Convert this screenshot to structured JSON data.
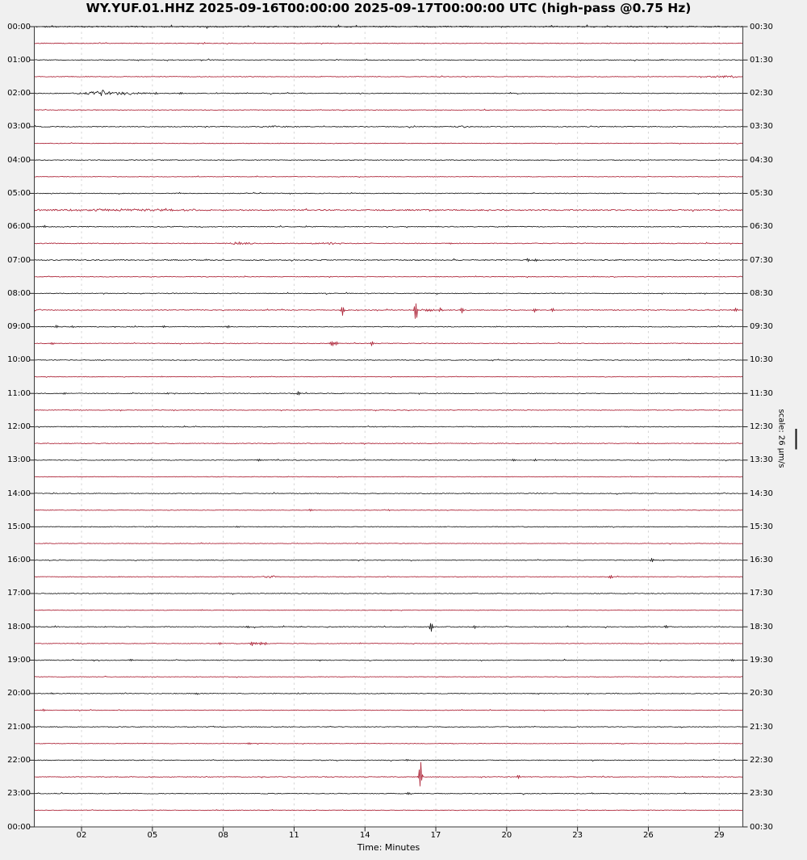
{
  "figure": {
    "title": "WY.YUF.01.HHZ 2025-09-16T00:00:00 2025-09-17T00:00:00 UTC (high-pass @0.75 Hz)",
    "xlabel": "Time: Minutes",
    "scale_label": "scale: 26 µm/s"
  },
  "colors": {
    "figure_bg": "#f0f0f0",
    "axes_bg": "#ffffff",
    "axes_border": "#3a3a3a",
    "grid": "#d6d6d6",
    "tick": "#222222",
    "black_trace": "#1d1d1d",
    "red_trace": "#b02c3f",
    "text": "#000000"
  },
  "chart_data": {
    "type": "line",
    "subtype": "helicorder-dayplot",
    "station": "WY.YUF.01.HHZ",
    "time_window_utc": [
      "2025-09-16T00:00:00",
      "2025-09-17T00:00:00"
    ],
    "filter": "high-pass @0.75 Hz",
    "minutes_per_row": 30,
    "x_axis": {
      "label": "Time: Minutes",
      "range_minutes": [
        0,
        30
      ],
      "tick_minutes": [
        2,
        5,
        8,
        11,
        14,
        17,
        20,
        23,
        26,
        29
      ],
      "tick_labels": [
        "02",
        "05",
        "08",
        "11",
        "14",
        "17",
        "20",
        "23",
        "26",
        "29"
      ],
      "grid": "vertical-dashed"
    },
    "y_axis": {
      "left_labels": [
        "00:00",
        "01:00",
        "02:00",
        "03:00",
        "04:00",
        "05:00",
        "06:00",
        "07:00",
        "08:00",
        "09:00",
        "10:00",
        "11:00",
        "12:00",
        "13:00",
        "14:00",
        "15:00",
        "16:00",
        "17:00",
        "18:00",
        "19:00",
        "20:00",
        "21:00",
        "22:00",
        "23:00",
        "00:00"
      ],
      "right_labels": [
        "00:30",
        "01:30",
        "02:30",
        "03:30",
        "04:30",
        "05:30",
        "06:30",
        "07:30",
        "08:30",
        "09:30",
        "10:30",
        "11:30",
        "12:30",
        "13:30",
        "14:30",
        "15:30",
        "16:30",
        "17:30",
        "18:30",
        "19:30",
        "20:30",
        "21:30",
        "22:30",
        "23:30",
        "00:30"
      ]
    },
    "scale": {
      "label": "scale: 26 µm/s",
      "value_um_per_s": 26
    },
    "rows": [
      {
        "start": "00:00",
        "color": "k",
        "noise": 1.4,
        "events": []
      },
      {
        "start": "00:30",
        "color": "r",
        "noise": 0.7,
        "events": []
      },
      {
        "start": "01:00",
        "color": "k",
        "noise": 0.8,
        "events": [
          {
            "m": 26.6,
            "u": 1.0,
            "d": 1.0
          }
        ]
      },
      {
        "start": "01:30",
        "color": "r",
        "noise": 0.7,
        "events": [
          {
            "m": 29.0,
            "w": 9,
            "t": "f",
            "u": 1.6,
            "d": 1.6
          },
          {
            "m": 29.6,
            "w": 3,
            "t": "f",
            "u": 1.8,
            "d": 1.8
          }
        ]
      },
      {
        "start": "02:00",
        "color": "k",
        "noise": 0.8,
        "events": [
          {
            "m": 3.2,
            "w": 26,
            "t": "f",
            "u": 2.2,
            "d": 2.2
          },
          {
            "m": 2.9,
            "w": 8,
            "t": "f",
            "u": 3.0,
            "d": 3.0
          },
          {
            "m": 5.15,
            "u": 1.5,
            "d": 1.5
          },
          {
            "m": 6.2,
            "u": 1.5,
            "d": 1.5
          }
        ]
      },
      {
        "start": "02:30",
        "color": "r",
        "noise": 0.7,
        "events": []
      },
      {
        "start": "03:00",
        "color": "k",
        "noise": 0.9,
        "events": [
          {
            "m": 10.2,
            "w": 12,
            "t": "f",
            "u": 1.0,
            "d": 1.0
          },
          {
            "m": 18.2,
            "w": 10,
            "t": "f",
            "u": 1.0,
            "d": 1.0
          }
        ]
      },
      {
        "start": "03:30",
        "color": "r",
        "noise": 0.6,
        "events": []
      },
      {
        "start": "04:00",
        "color": "k",
        "noise": 0.8,
        "events": []
      },
      {
        "start": "04:30",
        "color": "r",
        "noise": 0.6,
        "events": []
      },
      {
        "start": "05:00",
        "color": "k",
        "noise": 0.8,
        "events": []
      },
      {
        "start": "05:30",
        "color": "r",
        "noise": 1.3,
        "events": [
          {
            "m": 4.0,
            "w": 80,
            "t": "f",
            "u": 1.0,
            "d": 1.0
          }
        ]
      },
      {
        "start": "06:00",
        "color": "k",
        "noise": 0.9,
        "events": [
          {
            "m": 0.45,
            "u": 2.0,
            "d": 2.0
          }
        ]
      },
      {
        "start": "06:30",
        "color": "r",
        "noise": 0.8,
        "events": [
          {
            "m": 8.8,
            "w": 10,
            "t": "f",
            "u": 1.8,
            "d": 1.8
          },
          {
            "m": 12.4,
            "w": 10,
            "t": "f",
            "u": 1.2,
            "d": 1.2
          },
          {
            "m": 17.6,
            "u": 1.2,
            "d": 1.2
          }
        ]
      },
      {
        "start": "07:00",
        "color": "k",
        "noise": 1.1,
        "events": [
          {
            "m": 20.9,
            "u": 2.5,
            "d": 2.5
          },
          {
            "m": 21.25,
            "u": 2.5,
            "d": 2.5
          }
        ]
      },
      {
        "start": "07:30",
        "color": "r",
        "noise": 0.7,
        "events": []
      },
      {
        "start": "08:00",
        "color": "k",
        "noise": 0.8,
        "events": []
      },
      {
        "start": "08:30",
        "color": "r",
        "noise": 0.9,
        "events": [
          {
            "m": 13.05,
            "u": 6,
            "d": 7
          },
          {
            "m": 16.15,
            "u": 11,
            "d": 17
          },
          {
            "m": 16.6,
            "w": 14,
            "t": "f",
            "u": 1.5,
            "d": 1.5
          },
          {
            "m": 17.2,
            "u": 2.5,
            "d": 2.5
          },
          {
            "m": 18.1,
            "u": 3.5,
            "d": 3.5
          },
          {
            "m": 21.2,
            "u": 2.5,
            "d": 2.5
          },
          {
            "m": 21.95,
            "u": 3.0,
            "d": 3.0
          },
          {
            "m": 29.7,
            "u": 2.5,
            "d": 2.5
          }
        ]
      },
      {
        "start": "09:00",
        "color": "k",
        "noise": 0.8,
        "events": [
          {
            "m": 0.95,
            "u": 1.8,
            "d": 1.8
          },
          {
            "m": 1.6,
            "u": 1.5,
            "d": 1.5
          },
          {
            "m": 5.5,
            "u": 2.0,
            "d": 2.0
          },
          {
            "m": 8.2,
            "u": 1.5,
            "d": 1.5
          }
        ]
      },
      {
        "start": "09:30",
        "color": "r",
        "noise": 0.7,
        "events": [
          {
            "m": 0.77,
            "u": 2.0,
            "d": 2.0
          },
          {
            "m": 12.6,
            "u": 4.5,
            "d": 4.5
          },
          {
            "m": 12.78,
            "u": 3.0,
            "d": 3.0
          },
          {
            "m": 14.3,
            "u": 3.0,
            "d": 3.0
          }
        ]
      },
      {
        "start": "10:00",
        "color": "k",
        "noise": 0.8,
        "events": []
      },
      {
        "start": "10:30",
        "color": "r",
        "noise": 0.6,
        "events": []
      },
      {
        "start": "11:00",
        "color": "k",
        "noise": 0.8,
        "events": [
          {
            "m": 1.28,
            "u": 1.5,
            "d": 1.5
          },
          {
            "m": 5.65,
            "u": 1.2,
            "d": 1.2
          },
          {
            "m": 11.2,
            "u": 3.0,
            "d": 3.0
          }
        ]
      },
      {
        "start": "11:30",
        "color": "r",
        "noise": 0.7,
        "events": []
      },
      {
        "start": "12:00",
        "color": "k",
        "noise": 0.8,
        "events": []
      },
      {
        "start": "12:30",
        "color": "r",
        "noise": 0.8,
        "events": []
      },
      {
        "start": "13:00",
        "color": "k",
        "noise": 0.8,
        "events": [
          {
            "m": 9.5,
            "u": 1.5,
            "d": 1.5
          },
          {
            "m": 20.3,
            "u": 1.5,
            "d": 1.5
          },
          {
            "m": 21.2,
            "u": 1.5,
            "d": 1.5
          }
        ]
      },
      {
        "start": "13:30",
        "color": "r",
        "noise": 0.6,
        "events": []
      },
      {
        "start": "14:00",
        "color": "k",
        "noise": 0.8,
        "events": []
      },
      {
        "start": "14:30",
        "color": "r",
        "noise": 0.6,
        "events": [
          {
            "m": 11.7,
            "u": 1.5,
            "d": 1.5
          }
        ]
      },
      {
        "start": "15:00",
        "color": "k",
        "noise": 0.8,
        "events": [
          {
            "m": 8.6,
            "u": 1.5,
            "d": 1.5
          }
        ]
      },
      {
        "start": "15:30",
        "color": "r",
        "noise": 0.6,
        "events": []
      },
      {
        "start": "16:00",
        "color": "k",
        "noise": 0.8,
        "events": [
          {
            "m": 26.15,
            "u": 2.5,
            "d": 2.5
          }
        ]
      },
      {
        "start": "16:30",
        "color": "r",
        "noise": 0.7,
        "events": [
          {
            "m": 10.0,
            "w": 8,
            "t": "f",
            "u": 1.2,
            "d": 1.2
          },
          {
            "m": 24.4,
            "u": 3.0,
            "d": 3.0
          }
        ]
      },
      {
        "start": "17:00",
        "color": "k",
        "noise": 0.8,
        "events": []
      },
      {
        "start": "17:30",
        "color": "r",
        "noise": 0.6,
        "events": []
      },
      {
        "start": "18:00",
        "color": "k",
        "noise": 0.9,
        "events": [
          {
            "m": 9.05,
            "u": 2.0,
            "d": 2.0
          },
          {
            "m": 16.8,
            "u": 7,
            "d": 7
          },
          {
            "m": 18.65,
            "u": 2.0,
            "d": 2.0
          },
          {
            "m": 26.75,
            "u": 2.5,
            "d": 2.5
          }
        ]
      },
      {
        "start": "18:30",
        "color": "r",
        "noise": 0.7,
        "events": [
          {
            "m": 7.85,
            "u": 1.5,
            "d": 1.5
          },
          {
            "m": 9.2,
            "u": 3.0,
            "d": 3.0
          },
          {
            "m": 9.4,
            "u": 2.5,
            "d": 2.5
          },
          {
            "m": 9.6,
            "u": 2.5,
            "d": 2.5
          },
          {
            "m": 9.78,
            "u": 2.0,
            "d": 2.0
          }
        ]
      },
      {
        "start": "19:00",
        "color": "k",
        "noise": 0.8,
        "events": [
          {
            "m": 4.1,
            "u": 2.0,
            "d": 2.0
          },
          {
            "m": 29.57,
            "u": 1.8,
            "d": 1.8
          }
        ]
      },
      {
        "start": "19:30",
        "color": "r",
        "noise": 0.6,
        "events": []
      },
      {
        "start": "20:00",
        "color": "k",
        "noise": 0.8,
        "events": [
          {
            "m": 0.75,
            "u": 1.5,
            "d": 1.5
          },
          {
            "m": 6.9,
            "u": 1.5,
            "d": 1.5
          }
        ]
      },
      {
        "start": "20:30",
        "color": "r",
        "noise": 0.6,
        "events": [
          {
            "m": 0.4,
            "u": 1.5,
            "d": 1.5
          }
        ]
      },
      {
        "start": "21:00",
        "color": "k",
        "noise": 0.8,
        "events": []
      },
      {
        "start": "21:30",
        "color": "r",
        "noise": 0.6,
        "events": [
          {
            "m": 9.1,
            "u": 1.5,
            "d": 1.5
          }
        ]
      },
      {
        "start": "22:00",
        "color": "k",
        "noise": 0.8,
        "events": [
          {
            "m": 15.8,
            "u": 1.5,
            "d": 1.5
          }
        ]
      },
      {
        "start": "22:30",
        "color": "r",
        "noise": 0.8,
        "events": [
          {
            "m": 16.35,
            "u": 25,
            "d": 12
          },
          {
            "m": 20.5,
            "u": 2.5,
            "d": 2.5
          }
        ]
      },
      {
        "start": "23:00",
        "color": "k",
        "noise": 0.8,
        "events": [
          {
            "m": 15.85,
            "u": 2.0,
            "d": 2.0
          }
        ]
      },
      {
        "start": "23:30",
        "color": "r",
        "noise": 0.6,
        "events": []
      }
    ]
  }
}
